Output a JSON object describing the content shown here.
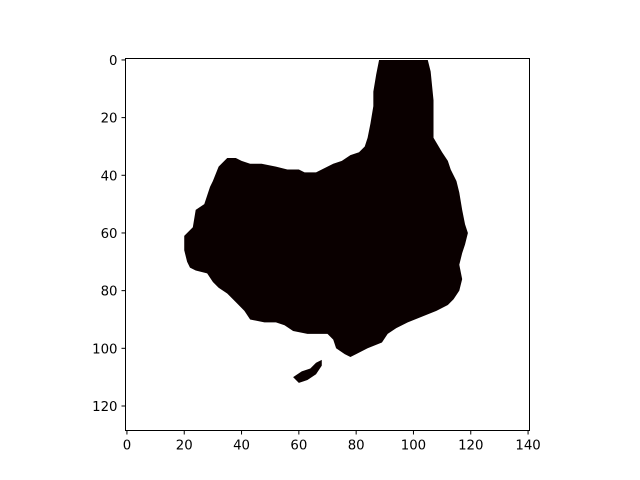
{
  "chart_data": {
    "type": "heatmap",
    "title": "",
    "xlabel": "",
    "ylabel": "",
    "xlim": [
      -0.5,
      140.5
    ],
    "ylim": [
      128.5,
      -0.5
    ],
    "x_ticks": [
      "0",
      "20",
      "40",
      "60",
      "80",
      "100",
      "120",
      "140"
    ],
    "y_ticks": [
      "0",
      "20",
      "40",
      "60",
      "80",
      "100",
      "120"
    ],
    "grid": false,
    "legend": "none",
    "colors": {
      "foreground": "#0a0000",
      "background": "#ffffff",
      "axes": "#000000"
    },
    "mask": {
      "description_units": "data",
      "main_region": [
        [
          88,
          0
        ],
        [
          105,
          0
        ],
        [
          106,
          4
        ],
        [
          107,
          14
        ],
        [
          107,
          27
        ],
        [
          110,
          32
        ],
        [
          112,
          35
        ],
        [
          113,
          38
        ],
        [
          115,
          42
        ],
        [
          116,
          46
        ],
        [
          117,
          52
        ],
        [
          118,
          57
        ],
        [
          119,
          60
        ],
        [
          118,
          64
        ],
        [
          117,
          67
        ],
        [
          116,
          71
        ],
        [
          117,
          76
        ],
        [
          116,
          80
        ],
        [
          114,
          83
        ],
        [
          112,
          85
        ],
        [
          108,
          87
        ],
        [
          103,
          89
        ],
        [
          98,
          91
        ],
        [
          94,
          93
        ],
        [
          91,
          95
        ],
        [
          89,
          98
        ],
        [
          84,
          100
        ],
        [
          80,
          102
        ],
        [
          78,
          103
        ],
        [
          76,
          102
        ],
        [
          73,
          100
        ],
        [
          72,
          97
        ],
        [
          70,
          95
        ],
        [
          63,
          95
        ],
        [
          58,
          94
        ],
        [
          55,
          92
        ],
        [
          52,
          91
        ],
        [
          48,
          91
        ],
        [
          43,
          90
        ],
        [
          41,
          87
        ],
        [
          38,
          84
        ],
        [
          35,
          81
        ],
        [
          32,
          79
        ],
        [
          30,
          77
        ],
        [
          28,
          74
        ],
        [
          24,
          73
        ],
        [
          22,
          72
        ],
        [
          21,
          70
        ],
        [
          20,
          66
        ],
        [
          20,
          61
        ],
        [
          23,
          58
        ],
        [
          24,
          52
        ],
        [
          27,
          50
        ],
        [
          28,
          47
        ],
        [
          29,
          44
        ],
        [
          30,
          42
        ],
        [
          32,
          37
        ],
        [
          35,
          34
        ],
        [
          38,
          34
        ],
        [
          40,
          35
        ],
        [
          43,
          36
        ],
        [
          47,
          36
        ],
        [
          52,
          37
        ],
        [
          56,
          38
        ],
        [
          60,
          38
        ],
        [
          62,
          39
        ],
        [
          66,
          39
        ],
        [
          68,
          38
        ],
        [
          70,
          37
        ],
        [
          72,
          36
        ],
        [
          75,
          35
        ],
        [
          78,
          33
        ],
        [
          81,
          32
        ],
        [
          83,
          30
        ],
        [
          84,
          27
        ],
        [
          85,
          22
        ],
        [
          86,
          16
        ],
        [
          86,
          11
        ],
        [
          87,
          5
        ]
      ],
      "small_region": [
        [
          58,
          110
        ],
        [
          61,
          108
        ],
        [
          64,
          107
        ],
        [
          66,
          105
        ],
        [
          68,
          104
        ],
        [
          68,
          106
        ],
        [
          66,
          109
        ],
        [
          63,
          111
        ],
        [
          60,
          112
        ]
      ]
    }
  }
}
